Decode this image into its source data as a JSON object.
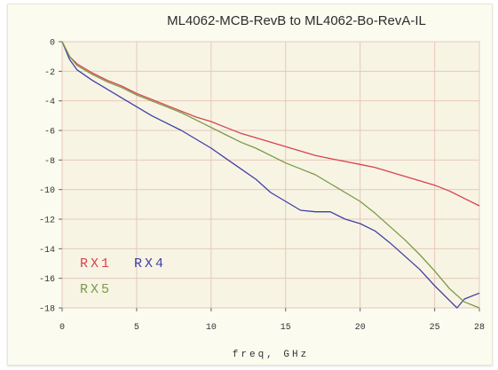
{
  "chart_data": {
    "type": "line",
    "title": "ML4062-MCB-RevB to ML4062-Bo-RevA-IL",
    "xlabel": "freq, GHz",
    "ylabel": "",
    "xlim": [
      0,
      28
    ],
    "ylim": [
      -18,
      0
    ],
    "xticks": [
      0,
      5,
      10,
      15,
      20,
      25,
      28
    ],
    "xtick_labels": [
      "0",
      "5",
      "10",
      "15",
      "20",
      "25",
      "28"
    ],
    "yticks": [
      0,
      -2,
      -4,
      -6,
      -8,
      -10,
      -12,
      -14,
      -16,
      -18
    ],
    "ytick_labels": [
      "0",
      "-2",
      "-4",
      "-6",
      "-8",
      "-10",
      "-12",
      "-14",
      "-16",
      "-18"
    ],
    "grid": true,
    "legend_position": "bottom-left",
    "series": [
      {
        "name": "RX1",
        "color": "#d8424c",
        "x": [
          0,
          0.5,
          1,
          2,
          3,
          4,
          5,
          6,
          7,
          8,
          9,
          10,
          11,
          12,
          13,
          14,
          15,
          16,
          17,
          18,
          19,
          20,
          21,
          22,
          23,
          24,
          25,
          26,
          27,
          28
        ],
        "y": [
          0,
          -1.0,
          -1.5,
          -2.1,
          -2.6,
          -3.0,
          -3.5,
          -3.9,
          -4.3,
          -4.7,
          -5.1,
          -5.4,
          -5.8,
          -6.2,
          -6.5,
          -6.8,
          -7.1,
          -7.4,
          -7.7,
          -7.9,
          -8.1,
          -8.3,
          -8.5,
          -8.8,
          -9.1,
          -9.4,
          -9.7,
          -10.1,
          -10.6,
          -11.1
        ]
      },
      {
        "name": "RX4",
        "color": "#4040a6",
        "x": [
          0,
          0.5,
          1,
          2,
          3,
          4,
          5,
          6,
          7,
          8,
          9,
          10,
          11,
          12,
          13,
          14,
          15,
          16,
          17,
          18,
          19,
          20,
          21,
          22,
          23,
          24,
          25,
          26,
          26.5,
          27,
          28
        ],
        "y": [
          0,
          -1.2,
          -1.9,
          -2.6,
          -3.2,
          -3.8,
          -4.4,
          -5.0,
          -5.5,
          -6.0,
          -6.6,
          -7.2,
          -7.9,
          -8.6,
          -9.3,
          -10.2,
          -10.8,
          -11.4,
          -11.5,
          -11.5,
          -12.0,
          -12.3,
          -12.8,
          -13.6,
          -14.5,
          -15.4,
          -16.5,
          -17.5,
          -18.0,
          -17.4,
          -17.0
        ]
      },
      {
        "name": "RX5",
        "color": "#7a9a48",
        "x": [
          0,
          0.5,
          1,
          2,
          3,
          4,
          5,
          6,
          7,
          8,
          9,
          10,
          11,
          12,
          13,
          14,
          15,
          16,
          17,
          18,
          19,
          20,
          21,
          22,
          23,
          24,
          25,
          26,
          27,
          28
        ],
        "y": [
          0,
          -1.0,
          -1.6,
          -2.2,
          -2.7,
          -3.1,
          -3.6,
          -4.0,
          -4.4,
          -4.8,
          -5.3,
          -5.8,
          -6.3,
          -6.8,
          -7.2,
          -7.7,
          -8.2,
          -8.6,
          -9.0,
          -9.6,
          -10.2,
          -10.8,
          -11.6,
          -12.5,
          -13.4,
          -14.4,
          -15.5,
          -16.7,
          -17.6,
          -18.0
        ]
      }
    ]
  }
}
